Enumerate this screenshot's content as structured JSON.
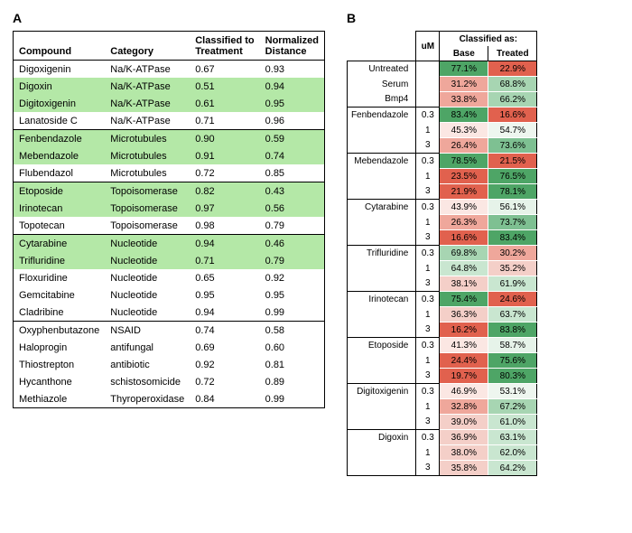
{
  "panelA": {
    "label": "A",
    "headers": {
      "c1": "Compound",
      "c2": "Category",
      "c3a": "Classified to",
      "c3b": "Treatment",
      "c4a": "Normalized",
      "c4b": "Distance"
    },
    "groups": [
      [
        {
          "compound": "Digoxigenin",
          "category": "Na/K-ATPase",
          "ct": "0.67",
          "nd": "0.93",
          "hl": false
        },
        {
          "compound": "Digoxin",
          "category": "Na/K-ATPase",
          "ct": "0.51",
          "nd": "0.94",
          "hl": true
        },
        {
          "compound": "Digitoxigenin",
          "category": "Na/K-ATPase",
          "ct": "0.61",
          "nd": "0.95",
          "hl": true
        },
        {
          "compound": "Lanatoside C",
          "category": "Na/K-ATPase",
          "ct": "0.71",
          "nd": "0.96",
          "hl": false
        }
      ],
      [
        {
          "compound": "Fenbendazole",
          "category": "Microtubules",
          "ct": "0.90",
          "nd": "0.59",
          "hl": true
        },
        {
          "compound": "Mebendazole",
          "category": "Microtubules",
          "ct": "0.91",
          "nd": "0.74",
          "hl": true
        },
        {
          "compound": "Flubendazol",
          "category": "Microtubules",
          "ct": "0.72",
          "nd": "0.85",
          "hl": false
        }
      ],
      [
        {
          "compound": "Etoposide",
          "category": "Topoisomerase",
          "ct": "0.82",
          "nd": "0.43",
          "hl": true
        },
        {
          "compound": "Irinotecan",
          "category": "Topoisomerase",
          "ct": "0.97",
          "nd": "0.56",
          "hl": true
        },
        {
          "compound": "Topotecan",
          "category": "Topoisomerase",
          "ct": "0.98",
          "nd": "0.79",
          "hl": false
        }
      ],
      [
        {
          "compound": "Cytarabine",
          "category": "Nucleotide",
          "ct": "0.94",
          "nd": "0.46",
          "hl": true
        },
        {
          "compound": "Trifluridine",
          "category": "Nucleotide",
          "ct": "0.71",
          "nd": "0.79",
          "hl": true
        },
        {
          "compound": "Floxuridine",
          "category": "Nucleotide",
          "ct": "0.65",
          "nd": "0.92",
          "hl": false
        },
        {
          "compound": "Gemcitabine",
          "category": "Nucleotide",
          "ct": "0.95",
          "nd": "0.95",
          "hl": false
        },
        {
          "compound": "Cladribine",
          "category": "Nucleotide",
          "ct": "0.94",
          "nd": "0.99",
          "hl": false
        }
      ],
      [
        {
          "compound": "Oxyphenbutazone",
          "category": "NSAID",
          "ct": "0.74",
          "nd": "0.58",
          "hl": false
        },
        {
          "compound": "Haloprogin",
          "category": "antifungal",
          "ct": "0.69",
          "nd": "0.60",
          "hl": false
        },
        {
          "compound": "Thiostrepton",
          "category": "antibiotic",
          "ct": "0.92",
          "nd": "0.81",
          "hl": false
        },
        {
          "compound": "Hycanthone",
          "category": "schistosomicide",
          "ct": "0.72",
          "nd": "0.89",
          "hl": false
        },
        {
          "compound": "Methiazole",
          "category": "Thyroperoxidase",
          "ct": "0.84",
          "nd": "0.99",
          "hl": false
        }
      ]
    ]
  },
  "panelB": {
    "label": "B",
    "headers": {
      "um": "uM",
      "classified": "Classified as:",
      "base": "Base",
      "treated": "Treated"
    },
    "colors": {
      "green_hi": "#4ea566",
      "green_mid": "#a7d5b2",
      "green_lo": "#e6f3e9",
      "red_hi": "#e1614e",
      "red_mid": "#efa79b",
      "red_lo": "#fbe7e3",
      "neutral": "#f5f5f5"
    },
    "groups": [
      {
        "rows": [
          {
            "label": "Untreated",
            "um": "",
            "base": {
              "v": "77.1%",
              "c": "#4ea566"
            },
            "treated": {
              "v": "22.9%",
              "c": "#e1614e"
            }
          },
          {
            "label": "Serum",
            "um": "",
            "base": {
              "v": "31.2%",
              "c": "#efa79b"
            },
            "treated": {
              "v": "68.8%",
              "c": "#a7d5b2"
            }
          },
          {
            "label": "Bmp4",
            "um": "",
            "base": {
              "v": "33.8%",
              "c": "#efa79b"
            },
            "treated": {
              "v": "66.2%",
              "c": "#a7d5b2"
            }
          }
        ]
      },
      {
        "rows": [
          {
            "label": "Fenbendazole",
            "um": "0.3",
            "base": {
              "v": "83.4%",
              "c": "#4ea566"
            },
            "treated": {
              "v": "16.6%",
              "c": "#e1614e"
            }
          },
          {
            "label": "",
            "um": "1",
            "base": {
              "v": "45.3%",
              "c": "#fbe7e3"
            },
            "treated": {
              "v": "54.7%",
              "c": "#eef6ef"
            }
          },
          {
            "label": "",
            "um": "3",
            "base": {
              "v": "26.4%",
              "c": "#efa79b"
            },
            "treated": {
              "v": "73.6%",
              "c": "#7ec092"
            }
          }
        ]
      },
      {
        "rows": [
          {
            "label": "Mebendazole",
            "um": "0.3",
            "base": {
              "v": "78.5%",
              "c": "#4ea566"
            },
            "treated": {
              "v": "21.5%",
              "c": "#e1614e"
            }
          },
          {
            "label": "",
            "um": "1",
            "base": {
              "v": "23.5%",
              "c": "#e1614e"
            },
            "treated": {
              "v": "76.5%",
              "c": "#4ea566"
            }
          },
          {
            "label": "",
            "um": "3",
            "base": {
              "v": "21.9%",
              "c": "#e1614e"
            },
            "treated": {
              "v": "78.1%",
              "c": "#4ea566"
            }
          }
        ]
      },
      {
        "rows": [
          {
            "label": "Cytarabine",
            "um": "0.3",
            "base": {
              "v": "43.9%",
              "c": "#fbe7e3"
            },
            "treated": {
              "v": "56.1%",
              "c": "#e6f3e9"
            }
          },
          {
            "label": "",
            "um": "1",
            "base": {
              "v": "26.3%",
              "c": "#efa79b"
            },
            "treated": {
              "v": "73.7%",
              "c": "#7ec092"
            }
          },
          {
            "label": "",
            "um": "3",
            "base": {
              "v": "16.6%",
              "c": "#e1614e"
            },
            "treated": {
              "v": "83.4%",
              "c": "#4ea566"
            }
          }
        ]
      },
      {
        "rows": [
          {
            "label": "Trifluridine",
            "um": "0.3",
            "base": {
              "v": "69.8%",
              "c": "#a7d5b2"
            },
            "treated": {
              "v": "30.2%",
              "c": "#efa79b"
            }
          },
          {
            "label": "",
            "um": "1",
            "base": {
              "v": "64.8%",
              "c": "#c9e6d0"
            },
            "treated": {
              "v": "35.2%",
              "c": "#f4cfc8"
            }
          },
          {
            "label": "",
            "um": "3",
            "base": {
              "v": "38.1%",
              "c": "#f4cfc8"
            },
            "treated": {
              "v": "61.9%",
              "c": "#c9e6d0"
            }
          }
        ]
      },
      {
        "rows": [
          {
            "label": "Irinotecan",
            "um": "0.3",
            "base": {
              "v": "75.4%",
              "c": "#4ea566"
            },
            "treated": {
              "v": "24.6%",
              "c": "#e1614e"
            }
          },
          {
            "label": "",
            "um": "1",
            "base": {
              "v": "36.3%",
              "c": "#f4cfc8"
            },
            "treated": {
              "v": "63.7%",
              "c": "#c9e6d0"
            }
          },
          {
            "label": "",
            "um": "3",
            "base": {
              "v": "16.2%",
              "c": "#e1614e"
            },
            "treated": {
              "v": "83.8%",
              "c": "#4ea566"
            }
          }
        ]
      },
      {
        "rows": [
          {
            "label": "Etoposide",
            "um": "0.3",
            "base": {
              "v": "41.3%",
              "c": "#fbe7e3"
            },
            "treated": {
              "v": "58.7%",
              "c": "#e6f3e9"
            }
          },
          {
            "label": "",
            "um": "1",
            "base": {
              "v": "24.4%",
              "c": "#e1614e"
            },
            "treated": {
              "v": "75.6%",
              "c": "#4ea566"
            }
          },
          {
            "label": "",
            "um": "3",
            "base": {
              "v": "19.7%",
              "c": "#e1614e"
            },
            "treated": {
              "v": "80.3%",
              "c": "#4ea566"
            }
          }
        ]
      },
      {
        "rows": [
          {
            "label": "Digitoxigenin",
            "um": "0.3",
            "base": {
              "v": "46.9%",
              "c": "#fbe7e3"
            },
            "treated": {
              "v": "53.1%",
              "c": "#eef6ef"
            }
          },
          {
            "label": "",
            "um": "1",
            "base": {
              "v": "32.8%",
              "c": "#efa79b"
            },
            "treated": {
              "v": "67.2%",
              "c": "#a7d5b2"
            }
          },
          {
            "label": "",
            "um": "3",
            "base": {
              "v": "39.0%",
              "c": "#f4cfc8"
            },
            "treated": {
              "v": "61.0%",
              "c": "#c9e6d0"
            }
          }
        ]
      },
      {
        "rows": [
          {
            "label": "Digoxin",
            "um": "0.3",
            "base": {
              "v": "36.9%",
              "c": "#f4cfc8"
            },
            "treated": {
              "v": "63.1%",
              "c": "#c9e6d0"
            }
          },
          {
            "label": "",
            "um": "1",
            "base": {
              "v": "38.0%",
              "c": "#f4cfc8"
            },
            "treated": {
              "v": "62.0%",
              "c": "#c9e6d0"
            }
          },
          {
            "label": "",
            "um": "3",
            "base": {
              "v": "35.8%",
              "c": "#f4cfc8"
            },
            "treated": {
              "v": "64.2%",
              "c": "#c9e6d0"
            }
          }
        ]
      }
    ]
  }
}
